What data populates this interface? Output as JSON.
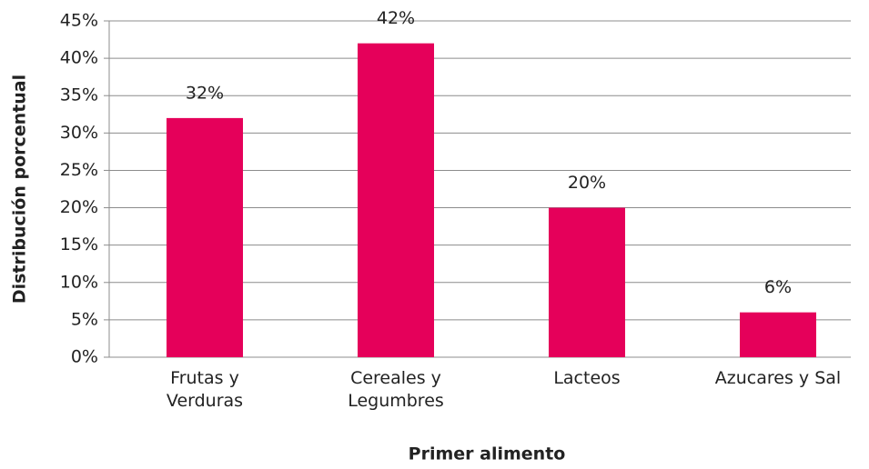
{
  "chart_data": {
    "type": "bar",
    "categories": [
      "Frutas y\nVerduras",
      "Cereales y\nLegumbres",
      "Lacteos",
      "Azucares y Sal"
    ],
    "values": [
      32,
      42,
      20,
      6
    ],
    "value_labels": [
      "32%",
      "42%",
      "20%",
      "6%"
    ],
    "color": "#e5005a",
    "xlabel": "Primer alimento",
    "ylabel": "Distribución porcentual",
    "ylim": [
      0,
      45
    ],
    "yticks": [
      {
        "value": 0,
        "label": "0%"
      },
      {
        "value": 5,
        "label": "5%"
      },
      {
        "value": 10,
        "label": "10%"
      },
      {
        "value": 15,
        "label": "15%"
      },
      {
        "value": 20,
        "label": "20%"
      },
      {
        "value": 25,
        "label": "25%"
      },
      {
        "value": 30,
        "label": "30%"
      },
      {
        "value": 35,
        "label": "35%"
      },
      {
        "value": 40,
        "label": "40%"
      },
      {
        "value": 45,
        "label": "45%"
      }
    ],
    "grid": true
  }
}
